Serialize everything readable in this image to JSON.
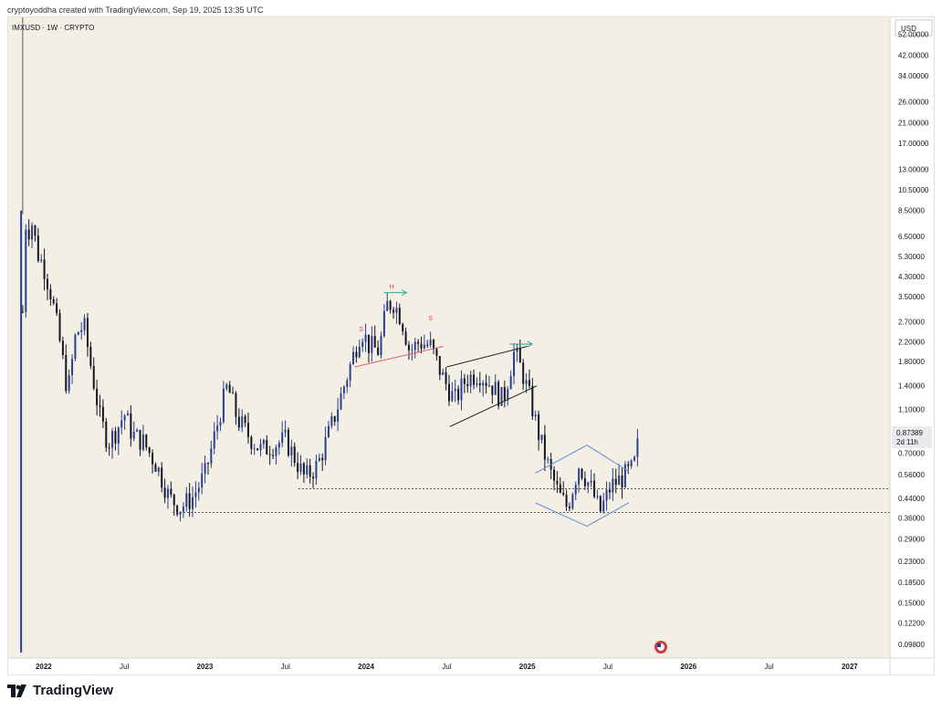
{
  "credit": "cryptoyoddha created with TradingView.com, Sep 19, 2025 13:35 UTC",
  "brand": "TradingView",
  "chart_data": {
    "type": "candlestick",
    "symbol_label": "IMXUSD · 1W · CRYPTO",
    "currency": "USD",
    "scale": "log",
    "ylim": [
      0.085,
      62
    ],
    "y_ticks": [
      "52.00000",
      "42.00000",
      "34.00000",
      "26.00000",
      "21.00000",
      "17.00000",
      "13.00000",
      "10.50000",
      "8.50000",
      "6.50000",
      "5.30000",
      "4.30000",
      "3.50000",
      "2.70000",
      "2.20000",
      "1.80000",
      "1.40000",
      "1.10000",
      "0.70000",
      "0.56000",
      "0.44000",
      "0.36000",
      "0.29000",
      "0.23000",
      "0.18500",
      "0.15000",
      "0.12200",
      "0.09800"
    ],
    "x_ticks": [
      "2022",
      "Jul",
      "2023",
      "Jul",
      "2024",
      "Jul",
      "2025",
      "Jul",
      "2026",
      "Jul",
      "2027"
    ],
    "x_tick_years": [
      2022.0,
      2022.5,
      2023.0,
      2023.5,
      2024.0,
      2024.5,
      2025.0,
      2025.5,
      2026.0,
      2026.5,
      2027.0
    ],
    "xlim": [
      2021.78,
      2027.25
    ],
    "last_price": "0.87389",
    "countdown": "2d 11h",
    "price_path": [
      [
        2021.86,
        0.09
      ],
      [
        2021.87,
        3.0
      ],
      [
        2021.88,
        8.0
      ],
      [
        2021.9,
        6.8
      ],
      [
        2021.93,
        7.5
      ],
      [
        2021.96,
        5.5
      ],
      [
        2022.0,
        4.8
      ],
      [
        2022.05,
        3.5
      ],
      [
        2022.1,
        2.2
      ],
      [
        2022.15,
        1.3
      ],
      [
        2022.2,
        2.4
      ],
      [
        2022.25,
        2.6
      ],
      [
        2022.3,
        1.6
      ],
      [
        2022.35,
        1.0
      ],
      [
        2022.4,
        0.78
      ],
      [
        2022.45,
        0.88
      ],
      [
        2022.5,
        1.05
      ],
      [
        2022.55,
        0.85
      ],
      [
        2022.62,
        0.78
      ],
      [
        2022.7,
        0.62
      ],
      [
        2022.78,
        0.44
      ],
      [
        2022.85,
        0.4
      ],
      [
        2022.92,
        0.44
      ],
      [
        2023.0,
        0.56
      ],
      [
        2023.05,
        0.78
      ],
      [
        2023.1,
        1.1
      ],
      [
        2023.14,
        1.4
      ],
      [
        2023.2,
        1.0
      ],
      [
        2023.28,
        0.82
      ],
      [
        2023.35,
        0.72
      ],
      [
        2023.42,
        0.76
      ],
      [
        2023.5,
        0.8
      ],
      [
        2023.56,
        0.66
      ],
      [
        2023.62,
        0.54
      ],
      [
        2023.7,
        0.62
      ],
      [
        2023.78,
        0.9
      ],
      [
        2023.85,
        1.3
      ],
      [
        2023.92,
        1.9
      ],
      [
        2023.97,
        2.5
      ],
      [
        2024.02,
        2.1
      ],
      [
        2024.08,
        2.0
      ],
      [
        2024.13,
        3.2
      ],
      [
        2024.17,
        3.3
      ],
      [
        2024.22,
        2.8
      ],
      [
        2024.27,
        2.0
      ],
      [
        2024.33,
        2.2
      ],
      [
        2024.4,
        2.1
      ],
      [
        2024.48,
        1.5
      ],
      [
        2024.55,
        1.2
      ],
      [
        2024.62,
        1.5
      ],
      [
        2024.7,
        1.6
      ],
      [
        2024.78,
        1.4
      ],
      [
        2024.85,
        1.2
      ],
      [
        2024.92,
        2.0
      ],
      [
        2024.97,
        1.6
      ],
      [
        2025.02,
        1.2
      ],
      [
        2025.08,
        0.8
      ],
      [
        2025.14,
        0.58
      ],
      [
        2025.2,
        0.45
      ],
      [
        2025.25,
        0.4
      ],
      [
        2025.32,
        0.62
      ],
      [
        2025.4,
        0.48
      ],
      [
        2025.45,
        0.38
      ],
      [
        2025.52,
        0.5
      ],
      [
        2025.6,
        0.55
      ],
      [
        2025.66,
        0.6
      ],
      [
        2025.7,
        0.87
      ]
    ],
    "annotations": [
      {
        "text": "S",
        "x": 2023.97,
        "y": 2.45
      },
      {
        "text": "H",
        "x": 2024.16,
        "y": 3.8
      },
      {
        "text": "S",
        "x": 2024.4,
        "y": 2.75
      }
    ],
    "horizontal_levels": [
      0.485,
      0.38
    ]
  },
  "colors": {
    "background": "#f4efe5",
    "up": "#2a3f8f",
    "down": "#131722",
    "axis_text": "#131722",
    "level_line": "#555555",
    "neckline": "#e06070",
    "channel": "#222222",
    "diamond": "#5b8dd9",
    "arrow": "#26a69a",
    "label": "#e04040",
    "price_tag": "#e9e9ee"
  }
}
